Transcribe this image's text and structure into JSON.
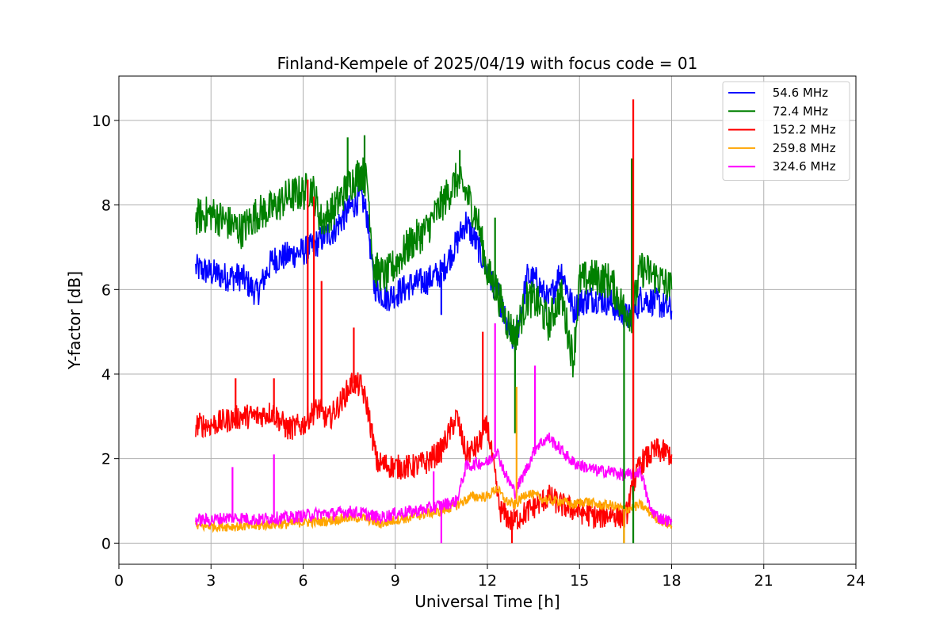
{
  "chart_data": {
    "type": "line",
    "title": "Finland-Kempele of 2025/04/19 with focus code = 01",
    "xlabel": "Universal Time [h]",
    "ylabel": "Y-factor [dB]",
    "xlim": [
      0,
      24
    ],
    "ylim": [
      -0.5,
      11.05
    ],
    "x_ticks": [
      0,
      3,
      6,
      9,
      12,
      15,
      18,
      21,
      24
    ],
    "x_tick_labels": [
      "0",
      "3",
      "6",
      "9",
      "12",
      "15",
      "18",
      "21",
      "24"
    ],
    "y_ticks": [
      0,
      2,
      4,
      6,
      8,
      10
    ],
    "y_tick_labels": [
      "0",
      "2",
      "4",
      "6",
      "8",
      "10"
    ],
    "grid": true,
    "legend_position": "top-right",
    "series": [
      {
        "name": " 54.6 MHz",
        "color": "#0000ff",
        "x": [
          2.5,
          3.0,
          3.5,
          4.0,
          4.5,
          5.0,
          5.5,
          6.0,
          6.3,
          6.6,
          7.0,
          7.5,
          7.9,
          8.1,
          8.3,
          8.7,
          9.0,
          9.5,
          10.0,
          10.5,
          11.0,
          11.3,
          11.7,
          12.0,
          12.3,
          12.6,
          12.9,
          13.3,
          13.6,
          14.0,
          14.4,
          14.8,
          15.0,
          15.5,
          16.0,
          16.4,
          16.7,
          17.0,
          17.5,
          18.0
        ],
        "y": [
          6.5,
          6.4,
          6.3,
          6.3,
          5.9,
          6.7,
          6.8,
          6.9,
          7.0,
          7.2,
          7.4,
          7.9,
          8.2,
          7.7,
          6.1,
          5.8,
          5.9,
          6.1,
          6.2,
          6.4,
          7.1,
          7.6,
          7.0,
          6.4,
          6.0,
          5.2,
          4.7,
          6.3,
          6.2,
          5.7,
          6.5,
          5.5,
          5.7,
          5.8,
          5.7,
          5.4,
          5.3,
          5.8,
          5.7,
          5.5
        ]
      },
      {
        "name": " 72.4 MHz",
        "color": "#008000",
        "x": [
          2.5,
          3.0,
          3.5,
          4.0,
          4.5,
          5.0,
          5.5,
          6.0,
          6.3,
          6.6,
          7.0,
          7.5,
          7.9,
          8.1,
          8.3,
          8.7,
          9.0,
          9.5,
          10.0,
          10.5,
          11.0,
          11.3,
          11.7,
          12.0,
          12.3,
          12.6,
          12.9,
          13.3,
          13.6,
          14.0,
          14.4,
          14.8,
          15.0,
          15.5,
          16.0,
          16.4,
          16.7,
          17.0,
          17.5,
          18.0
        ],
        "y": [
          7.7,
          7.8,
          7.6,
          7.4,
          7.8,
          7.9,
          8.2,
          8.3,
          8.4,
          7.6,
          7.9,
          8.5,
          8.8,
          8.5,
          6.5,
          6.3,
          6.6,
          7.1,
          7.4,
          8.0,
          8.6,
          8.3,
          7.6,
          6.4,
          6.0,
          5.3,
          4.9,
          5.8,
          5.7,
          5.2,
          5.9,
          4.3,
          6.2,
          6.3,
          6.2,
          5.6,
          5.4,
          6.5,
          6.3,
          6.0
        ]
      },
      {
        "name": " 152.2 MHz",
        "color": "#ff0000",
        "x": [
          2.5,
          3.0,
          3.5,
          4.0,
          4.5,
          5.0,
          5.5,
          6.0,
          6.2,
          6.5,
          6.8,
          7.2,
          7.6,
          7.9,
          8.1,
          8.4,
          9.0,
          9.5,
          10.0,
          10.5,
          11.0,
          11.3,
          11.7,
          12.0,
          12.4,
          12.8,
          13.2,
          13.6,
          14.0,
          14.4,
          14.8,
          15.2,
          15.6,
          16.0,
          16.5,
          16.8,
          17.0,
          17.5,
          18.0
        ],
        "y": [
          2.8,
          2.8,
          2.9,
          3.0,
          3.0,
          3.1,
          2.7,
          2.8,
          3.0,
          3.2,
          2.9,
          3.3,
          3.8,
          3.7,
          3.2,
          1.9,
          1.8,
          1.8,
          1.9,
          2.2,
          3.0,
          2.1,
          2.3,
          2.8,
          0.8,
          0.5,
          0.7,
          0.9,
          1.1,
          0.9,
          0.8,
          0.7,
          0.6,
          0.7,
          0.6,
          1.5,
          1.9,
          2.2,
          2.1
        ]
      },
      {
        "name": " 259.8 MHz",
        "color": "#ffa500",
        "x": [
          2.5,
          3.0,
          3.5,
          4.0,
          4.5,
          5.0,
          5.5,
          6.0,
          6.5,
          7.0,
          7.5,
          8.0,
          8.5,
          9.0,
          9.5,
          10.0,
          10.5,
          11.0,
          11.5,
          12.0,
          12.3,
          12.6,
          12.9,
          13.3,
          13.6,
          14.0,
          14.4,
          14.8,
          15.2,
          15.6,
          16.0,
          16.5,
          17.0,
          17.5,
          18.0
        ],
        "y": [
          0.4,
          0.4,
          0.4,
          0.4,
          0.4,
          0.45,
          0.45,
          0.5,
          0.5,
          0.55,
          0.6,
          0.6,
          0.45,
          0.55,
          0.6,
          0.7,
          0.75,
          0.9,
          1.1,
          1.1,
          1.3,
          1.0,
          0.9,
          1.2,
          1.1,
          1.0,
          1.0,
          0.9,
          1.0,
          0.9,
          0.9,
          0.8,
          0.9,
          0.6,
          0.4
        ]
      },
      {
        "name": " 324.6 MHz",
        "color": "#ff00ff",
        "x": [
          2.5,
          3.0,
          3.5,
          4.0,
          4.5,
          5.0,
          5.5,
          6.0,
          6.5,
          7.0,
          7.5,
          8.0,
          8.5,
          9.0,
          9.5,
          10.0,
          10.5,
          11.0,
          11.3,
          11.7,
          12.0,
          12.3,
          12.6,
          12.9,
          13.3,
          13.6,
          14.0,
          14.4,
          14.8,
          15.2,
          15.6,
          16.0,
          16.5,
          17.0,
          17.3,
          17.6,
          18.0
        ],
        "y": [
          0.55,
          0.55,
          0.6,
          0.6,
          0.55,
          0.6,
          0.6,
          0.65,
          0.7,
          0.7,
          0.75,
          0.7,
          0.6,
          0.7,
          0.75,
          0.8,
          0.9,
          1.0,
          1.8,
          1.9,
          1.9,
          2.2,
          1.6,
          1.2,
          1.8,
          2.3,
          2.5,
          2.2,
          1.9,
          1.8,
          1.7,
          1.7,
          1.6,
          1.7,
          0.8,
          0.6,
          0.5
        ]
      }
    ],
    "spikes": [
      {
        "series": 0,
        "x": 10.5,
        "y": 5.4
      },
      {
        "series": 1,
        "x": 7.45,
        "y": 9.6
      },
      {
        "series": 1,
        "x": 8.0,
        "y": 9.65
      },
      {
        "series": 1,
        "x": 11.1,
        "y": 9.3
      },
      {
        "series": 1,
        "x": 12.25,
        "y": 7.7
      },
      {
        "series": 1,
        "x": 12.9,
        "y": 2.6
      },
      {
        "series": 1,
        "x": 16.45,
        "y": 0.0
      },
      {
        "series": 1,
        "x": 16.7,
        "y": 9.1
      },
      {
        "series": 1,
        "x": 16.75,
        "y": 0.0
      },
      {
        "series": 2,
        "x": 3.8,
        "y": 3.9
      },
      {
        "series": 2,
        "x": 5.05,
        "y": 3.9
      },
      {
        "series": 2,
        "x": 6.15,
        "y": 8.6
      },
      {
        "series": 2,
        "x": 6.35,
        "y": 8.2
      },
      {
        "series": 2,
        "x": 6.6,
        "y": 6.2
      },
      {
        "series": 2,
        "x": 7.65,
        "y": 5.1
      },
      {
        "series": 2,
        "x": 11.85,
        "y": 5.0
      },
      {
        "series": 2,
        "x": 12.8,
        "y": 0.0
      },
      {
        "series": 2,
        "x": 16.75,
        "y": 10.5
      },
      {
        "series": 3,
        "x": 12.95,
        "y": 3.7
      },
      {
        "series": 3,
        "x": 16.45,
        "y": 0.0
      },
      {
        "series": 4,
        "x": 3.7,
        "y": 1.8
      },
      {
        "series": 4,
        "x": 5.05,
        "y": 2.1
      },
      {
        "series": 4,
        "x": 10.25,
        "y": 1.7
      },
      {
        "series": 4,
        "x": 10.5,
        "y": 0.0
      },
      {
        "series": 4,
        "x": 12.25,
        "y": 5.2
      },
      {
        "series": 4,
        "x": 13.55,
        "y": 4.2
      }
    ]
  }
}
